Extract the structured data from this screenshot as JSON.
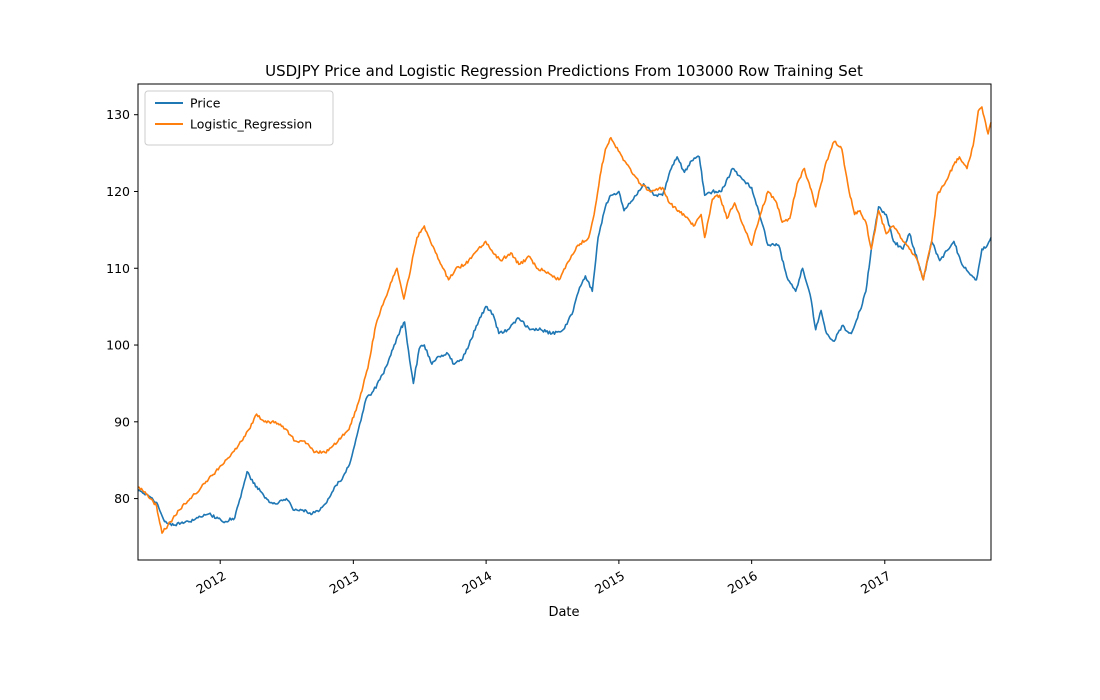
{
  "chart_data": {
    "type": "line",
    "title": "USDJPY Price and Logistic Regression Predictions From 103000 Row Training Set",
    "xlabel": "Date",
    "ylabel": "",
    "xlim": [
      "2011-05-20",
      "2017-10-20"
    ],
    "ylim": [
      72,
      134
    ],
    "yticks": [
      80,
      90,
      100,
      110,
      120,
      130
    ],
    "xticks": [
      {
        "date": "2012-01-01",
        "label": "2012"
      },
      {
        "date": "2013-01-01",
        "label": "2013"
      },
      {
        "date": "2014-01-01",
        "label": "2014"
      },
      {
        "date": "2015-01-01",
        "label": "2015"
      },
      {
        "date": "2016-01-01",
        "label": "2016"
      },
      {
        "date": "2017-01-01",
        "label": "2017"
      }
    ],
    "grid": false,
    "legend_position": "top-left",
    "series": [
      {
        "name": "Price",
        "color": "#1f77b4",
        "points": [
          [
            "2011-05-20",
            81.0
          ],
          [
            "2011-06-15",
            80.5
          ],
          [
            "2011-07-10",
            79.5
          ],
          [
            "2011-08-01",
            77.0
          ],
          [
            "2011-08-20",
            76.5
          ],
          [
            "2011-09-15",
            76.8
          ],
          [
            "2011-10-10",
            77.0
          ],
          [
            "2011-11-01",
            77.5
          ],
          [
            "2011-12-01",
            78.0
          ],
          [
            "2012-01-15",
            77.0
          ],
          [
            "2012-02-10",
            77.5
          ],
          [
            "2012-03-01",
            81.0
          ],
          [
            "2012-03-15",
            83.5
          ],
          [
            "2012-04-01",
            82.0
          ],
          [
            "2012-04-20",
            81.0
          ],
          [
            "2012-05-15",
            79.5
          ],
          [
            "2012-06-10",
            79.5
          ],
          [
            "2012-07-01",
            80.0
          ],
          [
            "2012-07-20",
            78.5
          ],
          [
            "2012-08-15",
            78.5
          ],
          [
            "2012-09-10",
            78.0
          ],
          [
            "2012-10-01",
            78.5
          ],
          [
            "2012-10-20",
            79.5
          ],
          [
            "2012-11-10",
            81.5
          ],
          [
            "2012-12-01",
            82.5
          ],
          [
            "2012-12-25",
            85.0
          ],
          [
            "2013-01-15",
            89.0
          ],
          [
            "2013-02-05",
            93.0
          ],
          [
            "2013-02-25",
            94.0
          ],
          [
            "2013-03-15",
            95.5
          ],
          [
            "2013-04-05",
            97.5
          ],
          [
            "2013-04-20",
            99.5
          ],
          [
            "2013-05-10",
            102.0
          ],
          [
            "2013-05-22",
            103.0
          ],
          [
            "2013-06-05",
            98.0
          ],
          [
            "2013-06-15",
            95.0
          ],
          [
            "2013-07-01",
            99.5
          ],
          [
            "2013-07-15",
            100.0
          ],
          [
            "2013-08-05",
            97.5
          ],
          [
            "2013-08-25",
            98.5
          ],
          [
            "2013-09-15",
            99.0
          ],
          [
            "2013-10-05",
            97.5
          ],
          [
            "2013-10-25",
            98.0
          ],
          [
            "2013-11-15",
            100.0
          ],
          [
            "2013-12-05",
            102.5
          ],
          [
            "2013-12-31",
            105.0
          ],
          [
            "2014-01-20",
            104.0
          ],
          [
            "2014-02-05",
            101.5
          ],
          [
            "2014-03-01",
            102.0
          ],
          [
            "2014-04-01",
            103.5
          ],
          [
            "2014-05-01",
            102.0
          ],
          [
            "2014-06-01",
            102.0
          ],
          [
            "2014-07-01",
            101.5
          ],
          [
            "2014-08-01",
            102.0
          ],
          [
            "2014-08-25",
            104.0
          ],
          [
            "2014-09-15",
            107.5
          ],
          [
            "2014-10-01",
            109.0
          ],
          [
            "2014-10-20",
            107.0
          ],
          [
            "2014-11-05",
            114.0
          ],
          [
            "2014-11-25",
            118.0
          ],
          [
            "2014-12-10",
            119.5
          ],
          [
            "2015-01-01",
            120.0
          ],
          [
            "2015-01-15",
            117.5
          ],
          [
            "2015-02-10",
            119.0
          ],
          [
            "2015-03-10",
            121.0
          ],
          [
            "2015-04-10",
            119.5
          ],
          [
            "2015-05-01",
            119.5
          ],
          [
            "2015-05-25",
            123.0
          ],
          [
            "2015-06-10",
            124.5
          ],
          [
            "2015-06-30",
            122.5
          ],
          [
            "2015-07-20",
            124.0
          ],
          [
            "2015-08-10",
            124.5
          ],
          [
            "2015-08-25",
            119.5
          ],
          [
            "2015-09-15",
            120.0
          ],
          [
            "2015-10-10",
            120.0
          ],
          [
            "2015-11-10",
            123.0
          ],
          [
            "2015-12-10",
            121.5
          ],
          [
            "2016-01-01",
            120.5
          ],
          [
            "2016-01-20",
            117.5
          ],
          [
            "2016-02-15",
            113.0
          ],
          [
            "2016-03-15",
            113.0
          ],
          [
            "2016-04-10",
            108.5
          ],
          [
            "2016-05-01",
            107.0
          ],
          [
            "2016-05-20",
            110.0
          ],
          [
            "2016-06-10",
            106.5
          ],
          [
            "2016-06-25",
            102.0
          ],
          [
            "2016-07-10",
            104.5
          ],
          [
            "2016-07-25",
            101.5
          ],
          [
            "2016-08-15",
            100.5
          ],
          [
            "2016-09-05",
            102.5
          ],
          [
            "2016-10-01",
            101.5
          ],
          [
            "2016-10-25",
            104.5
          ],
          [
            "2016-11-10",
            107.0
          ],
          [
            "2016-11-25",
            112.5
          ],
          [
            "2016-12-15",
            118.0
          ],
          [
            "2017-01-05",
            117.0
          ],
          [
            "2017-01-25",
            113.5
          ],
          [
            "2017-02-20",
            112.5
          ],
          [
            "2017-03-10",
            114.5
          ],
          [
            "2017-04-01",
            111.0
          ],
          [
            "2017-04-17",
            108.5
          ],
          [
            "2017-05-10",
            113.5
          ],
          [
            "2017-06-01",
            111.0
          ],
          [
            "2017-07-10",
            113.5
          ],
          [
            "2017-08-01",
            110.5
          ],
          [
            "2017-09-10",
            108.5
          ],
          [
            "2017-09-25",
            112.5
          ],
          [
            "2017-10-10",
            113.0
          ],
          [
            "2017-10-20",
            114.0
          ]
        ]
      },
      {
        "name": "Logistic_Regression",
        "color": "#ff7f0e",
        "points": [
          [
            "2011-05-20",
            81.5
          ],
          [
            "2011-06-15",
            80.5
          ],
          [
            "2011-07-10",
            79.0
          ],
          [
            "2011-07-25",
            75.5
          ],
          [
            "2011-08-10",
            76.5
          ],
          [
            "2011-09-10",
            78.5
          ],
          [
            "2011-10-10",
            80.0
          ],
          [
            "2011-11-10",
            81.5
          ],
          [
            "2011-12-10",
            83.0
          ],
          [
            "2012-01-15",
            85.0
          ],
          [
            "2012-02-15",
            86.5
          ],
          [
            "2012-03-20",
            89.0
          ],
          [
            "2012-04-10",
            91.0
          ],
          [
            "2012-05-01",
            90.0
          ],
          [
            "2012-06-01",
            90.0
          ],
          [
            "2012-07-01",
            89.0
          ],
          [
            "2012-07-25",
            87.5
          ],
          [
            "2012-08-20",
            87.5
          ],
          [
            "2012-09-15",
            86.0
          ],
          [
            "2012-10-15",
            86.0
          ],
          [
            "2012-11-20",
            87.5
          ],
          [
            "2012-12-20",
            89.0
          ],
          [
            "2013-01-15",
            92.5
          ],
          [
            "2013-02-10",
            97.0
          ],
          [
            "2013-03-01",
            102.0
          ],
          [
            "2013-03-20",
            105.0
          ],
          [
            "2013-04-10",
            107.5
          ],
          [
            "2013-05-01",
            110.0
          ],
          [
            "2013-05-20",
            106.0
          ],
          [
            "2013-06-10",
            110.5
          ],
          [
            "2013-06-25",
            114.0
          ],
          [
            "2013-07-15",
            115.5
          ],
          [
            "2013-08-05",
            113.0
          ],
          [
            "2013-08-25",
            111.0
          ],
          [
            "2013-09-20",
            108.5
          ],
          [
            "2013-10-10",
            110.0
          ],
          [
            "2013-11-05",
            110.5
          ],
          [
            "2013-12-01",
            112.0
          ],
          [
            "2013-12-31",
            113.5
          ],
          [
            "2014-01-20",
            112.0
          ],
          [
            "2014-02-10",
            111.0
          ],
          [
            "2014-03-10",
            112.0
          ],
          [
            "2014-04-01",
            110.5
          ],
          [
            "2014-05-01",
            111.5
          ],
          [
            "2014-05-20",
            110.0
          ],
          [
            "2014-06-20",
            109.5
          ],
          [
            "2014-07-20",
            108.5
          ],
          [
            "2014-08-10",
            110.5
          ],
          [
            "2014-09-10",
            113.0
          ],
          [
            "2014-10-10",
            114.0
          ],
          [
            "2014-10-25",
            117.0
          ],
          [
            "2014-11-10",
            122.0
          ],
          [
            "2014-11-25",
            125.5
          ],
          [
            "2014-12-10",
            127.0
          ],
          [
            "2015-01-10",
            124.5
          ],
          [
            "2015-02-05",
            122.5
          ],
          [
            "2015-03-01",
            121.0
          ],
          [
            "2015-04-01",
            120.0
          ],
          [
            "2015-05-01",
            120.5
          ],
          [
            "2015-05-20",
            118.5
          ],
          [
            "2015-06-15",
            117.5
          ],
          [
            "2015-07-10",
            116.5
          ],
          [
            "2015-07-25",
            115.5
          ],
          [
            "2015-08-15",
            117.0
          ],
          [
            "2015-08-25",
            114.0
          ],
          [
            "2015-09-15",
            119.0
          ],
          [
            "2015-10-05",
            119.5
          ],
          [
            "2015-10-25",
            116.5
          ],
          [
            "2015-11-15",
            118.5
          ],
          [
            "2015-12-10",
            115.5
          ],
          [
            "2016-01-01",
            113.0
          ],
          [
            "2016-01-25",
            117.0
          ],
          [
            "2016-02-15",
            120.0
          ],
          [
            "2016-03-10",
            118.5
          ],
          [
            "2016-03-25",
            116.0
          ],
          [
            "2016-04-15",
            116.5
          ],
          [
            "2016-05-05",
            121.0
          ],
          [
            "2016-05-25",
            123.0
          ],
          [
            "2016-06-10",
            120.5
          ],
          [
            "2016-06-25",
            118.0
          ],
          [
            "2016-07-10",
            121.0
          ],
          [
            "2016-07-25",
            124.0
          ],
          [
            "2016-08-15",
            126.5
          ],
          [
            "2016-09-05",
            125.5
          ],
          [
            "2016-09-25",
            120.0
          ],
          [
            "2016-10-10",
            117.0
          ],
          [
            "2016-10-25",
            117.5
          ],
          [
            "2016-11-10",
            116.0
          ],
          [
            "2016-11-25",
            112.5
          ],
          [
            "2016-12-15",
            117.5
          ],
          [
            "2017-01-05",
            114.5
          ],
          [
            "2017-01-25",
            115.5
          ],
          [
            "2017-02-20",
            113.5
          ],
          [
            "2017-03-10",
            112.5
          ],
          [
            "2017-04-01",
            111.0
          ],
          [
            "2017-04-17",
            108.5
          ],
          [
            "2017-05-10",
            113.5
          ],
          [
            "2017-05-25",
            119.5
          ],
          [
            "2017-06-15",
            121.0
          ],
          [
            "2017-07-10",
            123.5
          ],
          [
            "2017-07-25",
            124.5
          ],
          [
            "2017-08-15",
            123.0
          ],
          [
            "2017-09-01",
            126.0
          ],
          [
            "2017-09-15",
            130.5
          ],
          [
            "2017-09-25",
            131.0
          ],
          [
            "2017-10-05",
            129.0
          ],
          [
            "2017-10-12",
            127.5
          ],
          [
            "2017-10-20",
            129.0
          ]
        ]
      }
    ]
  }
}
